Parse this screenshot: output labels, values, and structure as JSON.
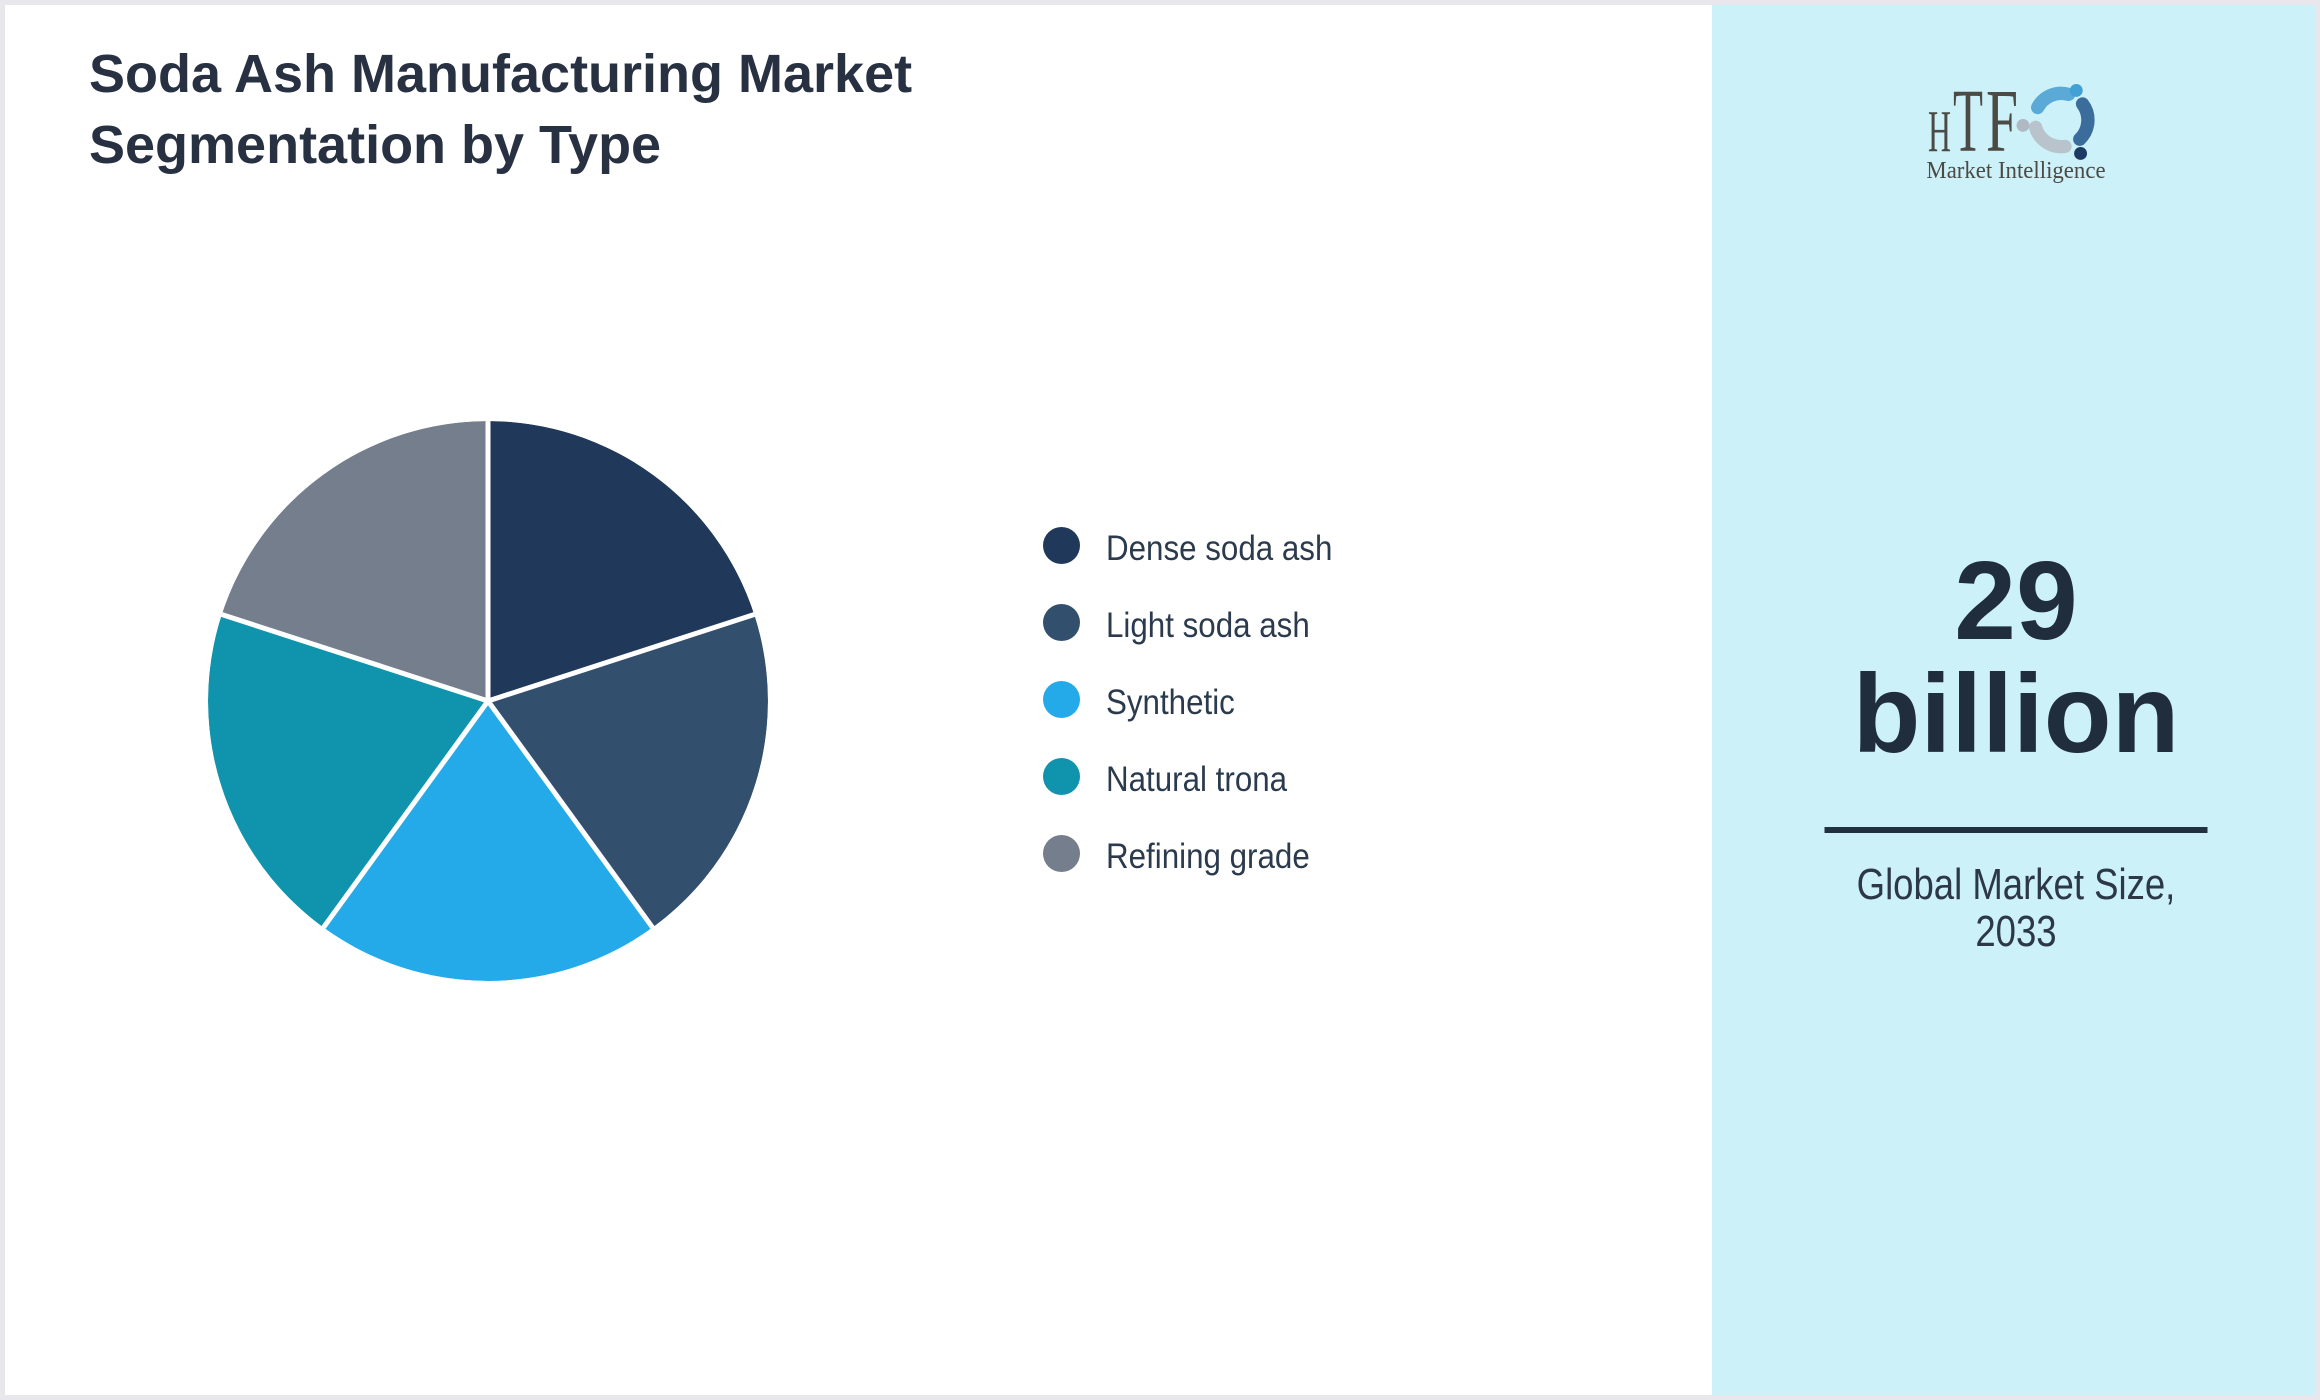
{
  "title": {
    "line1": "Soda Ash Manufacturing Market",
    "line2": "Segmentation by Type"
  },
  "chart_data": {
    "type": "pie",
    "title": "Soda Ash Manufacturing Market Segmentation by Type",
    "categories": [
      "Dense soda ash",
      "Light soda ash",
      "Synthetic",
      "Natural trona",
      "Refining grade"
    ],
    "values": [
      20,
      20,
      20,
      20,
      20
    ],
    "colors": [
      "#203859",
      "#32506e",
      "#24aae9",
      "#1094ad",
      "#747e8c"
    ],
    "start_angle_deg": 0,
    "direction": "clockwise",
    "legend_position": "right",
    "data_labels_shown": false
  },
  "sidebar": {
    "background_color": "#cdf1f9",
    "logo": {
      "brand": "HTF",
      "tagline": "Market Intelligence"
    },
    "stat": {
      "value_line1": "29",
      "value_line2": "billion",
      "label_line1": "Global Market Size,",
      "label_line2": "2033"
    }
  }
}
